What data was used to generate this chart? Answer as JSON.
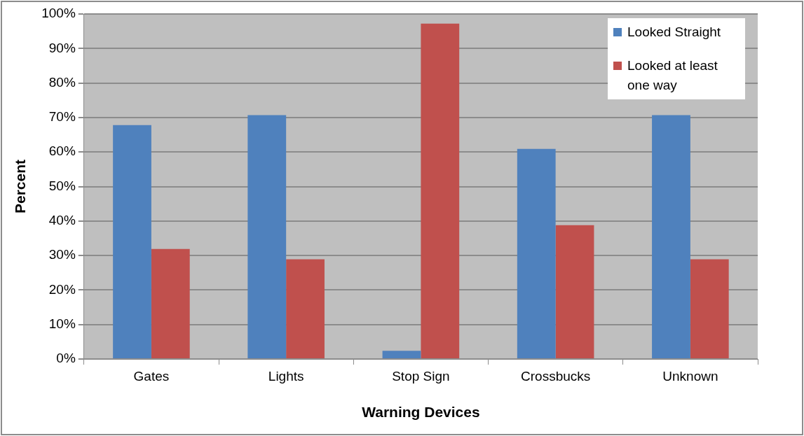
{
  "chart_data": {
    "type": "bar",
    "xlabel": "Warning Devices",
    "ylabel": "Percent",
    "categories": [
      "Gates",
      "Lights",
      "Stop Sign",
      "Crossbucks",
      "Unknown"
    ],
    "series": [
      {
        "name": "Looked Straight",
        "color": "#4f81bd",
        "values": [
          67.8,
          70.7,
          2.4,
          60.9,
          70.7
        ]
      },
      {
        "name": "Looked at least one way",
        "color": "#c0504d",
        "values": [
          31.9,
          28.9,
          97.2,
          38.8,
          28.9
        ]
      }
    ],
    "ylim": [
      0,
      100
    ],
    "yticks": [
      {
        "value": 0,
        "label": "0%"
      },
      {
        "value": 10,
        "label": "10%"
      },
      {
        "value": 20,
        "label": "20%"
      },
      {
        "value": 30,
        "label": "30%"
      },
      {
        "value": 40,
        "label": "40%"
      },
      {
        "value": 50,
        "label": "50%"
      },
      {
        "value": 60,
        "label": "60%"
      },
      {
        "value": 70,
        "label": "70%"
      },
      {
        "value": 80,
        "label": "80%"
      },
      {
        "value": 90,
        "label": "90%"
      },
      {
        "value": 100,
        "label": "100%"
      }
    ],
    "grid": "y",
    "legend": "top right"
  }
}
